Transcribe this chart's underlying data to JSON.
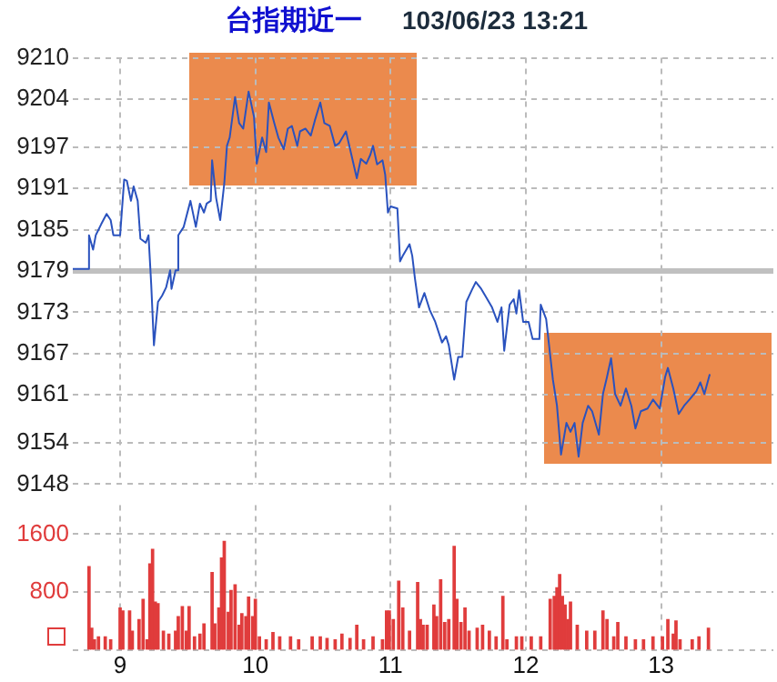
{
  "chart_data": [
    {
      "type": "line",
      "title": "台指期近一",
      "subtitle": "103/06/23 13:21",
      "x": [
        8.65,
        8.77,
        8.77,
        8.8,
        8.82,
        8.86,
        8.9,
        8.93,
        8.95,
        9.0,
        9.03,
        9.05,
        9.08,
        9.1,
        9.13,
        9.15,
        9.19,
        9.21,
        9.23,
        9.25,
        9.28,
        9.31,
        9.34,
        9.37,
        9.38,
        9.41,
        9.43,
        9.43,
        9.47,
        9.52,
        9.56,
        9.59,
        9.62,
        9.64,
        9.67,
        9.68,
        9.71,
        9.74,
        9.77,
        9.79,
        9.81,
        9.85,
        9.88,
        9.91,
        9.95,
        9.99,
        10.01,
        10.05,
        10.08,
        10.1,
        10.14,
        10.17,
        10.21,
        10.24,
        10.27,
        10.31,
        10.33,
        10.37,
        10.41,
        10.44,
        10.48,
        10.51,
        10.55,
        10.59,
        10.62,
        10.67,
        10.71,
        10.75,
        10.78,
        10.82,
        10.85,
        10.87,
        10.9,
        10.94,
        10.96,
        10.98,
        11.0,
        11.05,
        11.07,
        11.09,
        11.14,
        11.16,
        11.18,
        11.21,
        11.25,
        11.29,
        11.33,
        11.38,
        11.41,
        11.43,
        11.47,
        11.5,
        11.53,
        11.56,
        11.6,
        11.63,
        11.67,
        11.7,
        11.75,
        11.79,
        11.82,
        11.84,
        11.88,
        11.91,
        11.93,
        11.95,
        11.98,
        12.02,
        12.05,
        12.1,
        12.11,
        12.15,
        12.2,
        12.23,
        12.26,
        12.3,
        12.33,
        12.36,
        12.39,
        12.42,
        12.46,
        12.49,
        12.54,
        12.57,
        12.6,
        12.63,
        12.66,
        12.7,
        12.74,
        12.78,
        12.81,
        12.85,
        12.9,
        12.94,
        12.99,
        13.03,
        13.05,
        13.09,
        13.13,
        13.17,
        13.21,
        13.26,
        13.29,
        13.32,
        13.36
      ],
      "series": [
        {
          "color": "#2a52be",
          "values": [
            9179.3,
            9179.3,
            9184.2,
            9182.1,
            9184.2,
            9185.8,
            9187.3,
            9186.4,
            9184.2,
            9184.2,
            9192.3,
            9192.1,
            9189.2,
            9191.3,
            9189.2,
            9183.7,
            9183.1,
            9184.2,
            9177.0,
            9168.2,
            9174.5,
            9175.4,
            9176.6,
            9179.1,
            9176.4,
            9179.1,
            9179.1,
            9184.2,
            9185.4,
            9189.2,
            9185.4,
            9188.8,
            9187.5,
            9188.8,
            9189.2,
            9195.1,
            9189.6,
            9186.4,
            9191.7,
            9197.2,
            9198.4,
            9204.3,
            9200.5,
            9199.7,
            9205.1,
            9201.4,
            9194.6,
            9198.4,
            9196.3,
            9203.5,
            9200.5,
            9198.4,
            9196.7,
            9199.7,
            9200.1,
            9197.2,
            9199.3,
            9199.7,
            9198.7,
            9200.9,
            9203.5,
            9200.5,
            9200.1,
            9197.2,
            9197.6,
            9199.3,
            9195.9,
            9192.5,
            9195.3,
            9194.6,
            9195.9,
            9197.2,
            9194.5,
            9195.1,
            9193.0,
            9187.5,
            9188.4,
            9188.1,
            9180.4,
            9181.2,
            9182.9,
            9181.2,
            9177.9,
            9173.7,
            9175.8,
            9173.3,
            9171.6,
            9168.6,
            9169.5,
            9168.2,
            9163.2,
            9166.5,
            9166.5,
            9174.5,
            9176.2,
            9177.4,
            9176.4,
            9175.4,
            9173.7,
            9171.6,
            9173.7,
            9167.4,
            9174.1,
            9174.9,
            9172.8,
            9176.2,
            9171.6,
            9171.6,
            9169.1,
            9169.1,
            9174.1,
            9172.0,
            9163.2,
            9159.4,
            9152.3,
            9156.9,
            9155.6,
            9156.9,
            9152.0,
            9156.9,
            9159.4,
            9158.6,
            9155.2,
            9161.1,
            9163.6,
            9166.3,
            9161.1,
            9159.4,
            9161.9,
            9159.4,
            9156.1,
            9158.6,
            9159.0,
            9160.3,
            9159.0,
            9163.6,
            9164.9,
            9161.9,
            9158.2,
            9159.4,
            9160.3,
            9161.5,
            9162.8,
            9161.1,
            9164.0
          ]
        }
      ],
      "xlim": [
        8.65,
        13.83
      ],
      "xticks": [
        9,
        10,
        11,
        12,
        13
      ],
      "ylim": [
        9148,
        9210
      ],
      "yticks": [
        9148,
        9154,
        9161,
        9167,
        9173,
        9179,
        9185,
        9191,
        9197,
        9204,
        9210
      ],
      "grid": true,
      "tick_labels": "y",
      "ref_lines": [
        {
          "axis": "y",
          "value": 9179,
          "color": "#c0c0c0"
        }
      ]
    },
    {
      "type": "bar",
      "color": "#e03c3c",
      "x": [
        8.77,
        8.79,
        8.81,
        8.84,
        8.89,
        8.93,
        9.0,
        9.02,
        9.07,
        9.09,
        9.14,
        9.17,
        9.2,
        9.22,
        9.24,
        9.26,
        9.28,
        9.32,
        9.36,
        9.41,
        9.43,
        9.46,
        9.49,
        9.51,
        9.55,
        9.59,
        9.62,
        9.68,
        9.7,
        9.73,
        9.75,
        9.77,
        9.8,
        9.82,
        9.85,
        9.88,
        9.9,
        9.93,
        9.95,
        9.98,
        10.0,
        10.03,
        10.08,
        10.13,
        10.18,
        10.26,
        10.32,
        10.42,
        10.48,
        10.53,
        10.59,
        10.64,
        10.7,
        10.75,
        10.8,
        10.87,
        10.94,
        10.97,
        10.99,
        11.02,
        11.06,
        11.09,
        11.14,
        11.2,
        11.22,
        11.24,
        11.27,
        11.32,
        11.34,
        11.37,
        11.4,
        11.43,
        11.47,
        11.49,
        11.52,
        11.55,
        11.58,
        11.64,
        11.68,
        11.73,
        11.78,
        11.83,
        11.86,
        11.93,
        11.97,
        12.04,
        12.11,
        12.18,
        12.21,
        12.23,
        12.25,
        12.27,
        12.29,
        12.31,
        12.33,
        12.38,
        12.45,
        12.51,
        12.57,
        12.6,
        12.65,
        12.68,
        12.74,
        12.81,
        12.87,
        12.94,
        13.01,
        13.05,
        13.09,
        13.11,
        13.14,
        13.23,
        13.28,
        13.35
      ],
      "values": [
        1150,
        300,
        140,
        180,
        180,
        140,
        580,
        540,
        540,
        260,
        420,
        700,
        140,
        1190,
        1390,
        660,
        640,
        260,
        220,
        260,
        460,
        600,
        260,
        600,
        180,
        220,
        360,
        1070,
        360,
        580,
        1270,
        1500,
        520,
        820,
        900,
        340,
        500,
        460,
        730,
        460,
        700,
        180,
        140,
        240,
        180,
        180,
        140,
        180,
        180,
        160,
        140,
        220,
        160,
        340,
        140,
        180,
        140,
        540,
        540,
        420,
        950,
        580,
        260,
        930,
        420,
        340,
        340,
        620,
        460,
        970,
        380,
        420,
        1430,
        700,
        380,
        580,
        260,
        300,
        340,
        260,
        180,
        740,
        140,
        180,
        180,
        180,
        180,
        700,
        740,
        860,
        1040,
        740,
        620,
        420,
        660,
        340,
        260,
        260,
        540,
        420,
        180,
        380,
        180,
        140,
        140,
        180,
        180,
        420,
        220,
        400,
        140,
        140,
        180,
        300
      ],
      "xlim": [
        8.65,
        13.83
      ],
      "xticks": [
        9,
        10,
        11,
        12,
        13
      ],
      "ylim": [
        0,
        2000
      ],
      "yticks": [
        {
          "value": 0,
          "label": null
        },
        800,
        1600
      ],
      "grid": true
    }
  ]
}
